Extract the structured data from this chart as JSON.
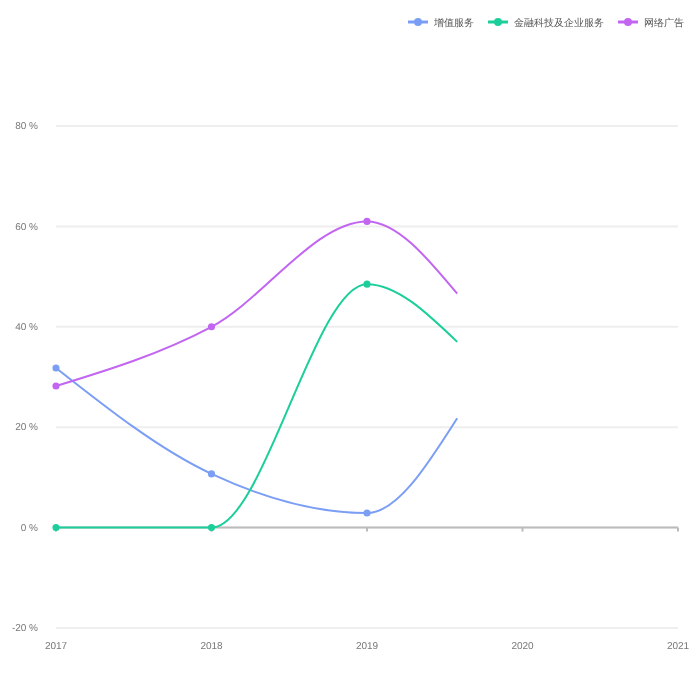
{
  "chart_data": {
    "type": "line",
    "x": [
      2017,
      2018,
      2019,
      2019.58
    ],
    "series": [
      {
        "name": "增值服务",
        "color": "#7b9ef5",
        "values": [
          31.8,
          10.7,
          2.9,
          21.8
        ]
      },
      {
        "name": "金融科技及企业服务",
        "color": "#1ccf9a",
        "values": [
          0,
          0,
          48.5,
          37
        ]
      },
      {
        "name": "网络广告",
        "color": "#c266f2",
        "values": [
          28.2,
          40,
          61,
          46.6
        ]
      }
    ],
    "xlim": [
      2017,
      2021
    ],
    "xticks": [
      2017,
      2018,
      2019,
      2020,
      2021
    ],
    "ylim": [
      -20,
      80
    ],
    "yticks": [
      {
        "value": -20,
        "label": "-20 %"
      },
      {
        "value": 0,
        "label": "0 %"
      },
      {
        "value": 20,
        "label": "20 %"
      },
      {
        "value": 40,
        "label": "40 %"
      },
      {
        "value": 60,
        "label": "60 %"
      },
      {
        "value": 80,
        "label": "80 %"
      }
    ],
    "grid": "y",
    "legend": "top right",
    "marker": "circle",
    "line_style": "solid"
  }
}
